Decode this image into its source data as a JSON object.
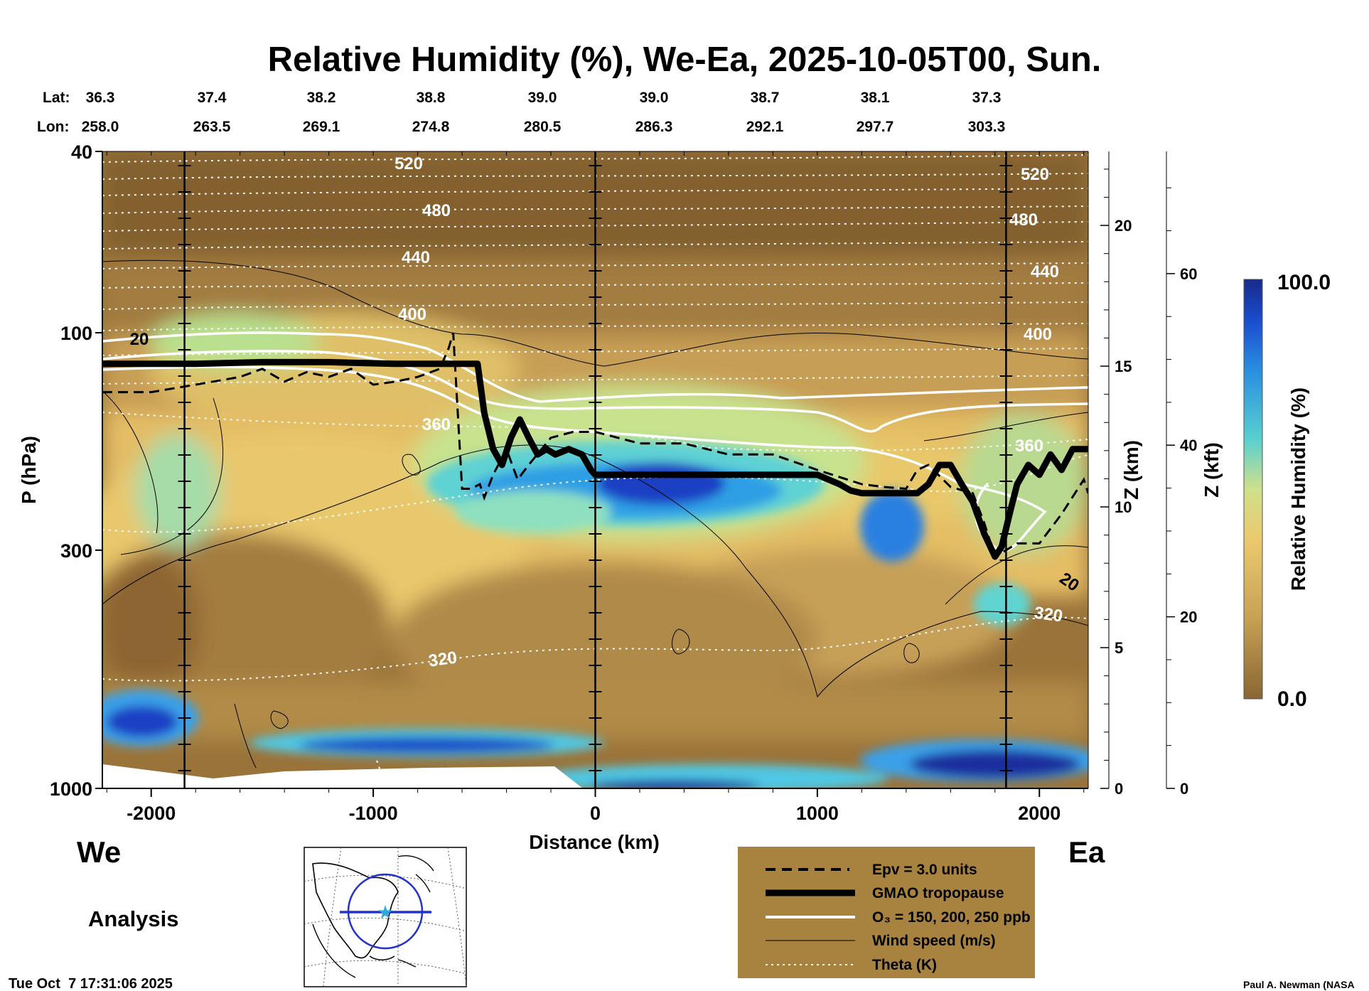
{
  "chart_data": {
    "type": "heatmap",
    "title": "Relative Humidity (%), We-Ea, 2025-10-05T00, Sun.",
    "lat_label": "Lat:",
    "lon_label": "Lon:",
    "lat_values": [
      "36.3",
      "37.4",
      "38.2",
      "38.8",
      "39.0",
      "39.0",
      "38.7",
      "38.1",
      "37.3"
    ],
    "lon_values": [
      "258.0",
      "263.5",
      "269.1",
      "274.8",
      "280.5",
      "286.3",
      "292.1",
      "297.7",
      "303.3"
    ],
    "xlabel": "Distance (km)",
    "xlim": [
      -2220,
      2220
    ],
    "x_ticks": [
      -2000,
      -1000,
      0,
      1000,
      2000
    ],
    "x_tick_labels": [
      "-2000",
      "-1000",
      "0",
      "1000",
      "2000"
    ],
    "ylabel": "P (hPa)",
    "ylim": [
      1000,
      40
    ],
    "y_ticks": [
      40,
      100,
      300,
      1000
    ],
    "y_tick_labels": [
      "40",
      "100",
      "300",
      "1000"
    ],
    "z_km_label": "Z (km)",
    "z_km_ticks": [
      0,
      5,
      10,
      15,
      20
    ],
    "z_km_labels": [
      "0",
      "5",
      "10",
      "15",
      "20"
    ],
    "z_kft_label": "Z (kft)",
    "z_kft_ticks": [
      0,
      20,
      40,
      60
    ],
    "z_kft_labels": [
      "0",
      "20",
      "40",
      "60"
    ],
    "vertical_markers_km": [
      -1850,
      0,
      1850
    ],
    "west_label": "We",
    "east_label": "Ea",
    "analysis_label": "Analysis",
    "colorbar": {
      "label": "Relative Humidity (%)",
      "min_label": "0.0",
      "max_label": "100.0",
      "min": 0,
      "max": 100
    },
    "tropopause_hpa": {
      "x": [
        -2220,
        -1800,
        -1500,
        -1200,
        -900,
        -600,
        -530,
        -500,
        -460,
        -420,
        -380,
        -340,
        -300,
        -260,
        -220,
        -180,
        -120,
        -60,
        -20,
        0,
        400,
        800,
        1000,
        1100,
        1150,
        1200,
        1300,
        1450,
        1500,
        1550,
        1600,
        1650,
        1700,
        1750,
        1800,
        1830,
        1870,
        1900,
        1950,
        2000,
        2050,
        2100,
        2150,
        2200,
        2220
      ],
      "p": [
        117,
        117,
        116,
        116,
        117,
        117,
        117,
        150,
        180,
        195,
        170,
        155,
        170,
        185,
        180,
        185,
        180,
        185,
        200,
        205,
        205,
        205,
        205,
        215,
        222,
        225,
        225,
        225,
        215,
        195,
        195,
        215,
        235,
        275,
        310,
        295,
        245,
        215,
        195,
        205,
        185,
        200,
        180,
        180,
        180
      ]
    },
    "epv_hpa": {
      "x": [
        -2220,
        -2000,
        -1800,
        -1600,
        -1500,
        -1400,
        -1300,
        -1200,
        -1100,
        -1000,
        -900,
        -800,
        -700,
        -660,
        -640,
        -600,
        -560,
        -520,
        -500,
        -460,
        -400,
        -350,
        -300,
        -200,
        -100,
        0,
        200,
        400,
        600,
        800,
        1000,
        1200,
        1300,
        1400,
        1450,
        1500,
        1600,
        1700,
        1750,
        1800,
        1850,
        1900,
        2000,
        2100,
        2200,
        2220
      ],
      "p": [
        135,
        135,
        130,
        125,
        120,
        128,
        122,
        125,
        120,
        130,
        128,
        125,
        120,
        108,
        100,
        220,
        220,
        215,
        230,
        205,
        180,
        210,
        195,
        170,
        165,
        165,
        175,
        175,
        185,
        185,
        200,
        215,
        218,
        220,
        200,
        195,
        218,
        225,
        260,
        310,
        300,
        290,
        290,
        250,
        210,
        225
      ]
    },
    "o3_contours_ppb": [
      150,
      200,
      250
    ],
    "theta_labels_K": [
      "520",
      "480",
      "440",
      "400",
      "360",
      "320"
    ],
    "wind_labels_ms": [
      "20"
    ],
    "legend": [
      {
        "label": "Epv = 3.0 units",
        "style": "dashed"
      },
      {
        "label": "GMAO tropopause",
        "style": "thick"
      },
      {
        "label": "O₃ = 150, 200, 250 ppb",
        "style": "white"
      },
      {
        "label": "Wind speed (m/s)",
        "style": "thin"
      },
      {
        "label": "Theta (K)",
        "style": "dotted"
      }
    ]
  },
  "footer": {
    "timestamp": "Tue Oct  7 17:31:06 2025",
    "credit": "Paul A. Newman (NASA"
  },
  "colors": {
    "dry": "#8a6532",
    "moist_mid": "#e8c46a",
    "wet": "#2aa8d8",
    "saturated": "#1a2a9a",
    "legend_bg": "#a8823f"
  }
}
